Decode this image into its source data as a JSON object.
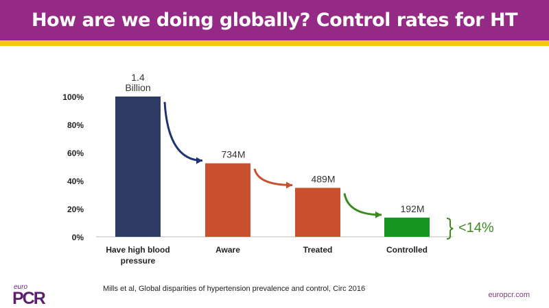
{
  "header": {
    "title": "How are we doing globally? Control rates for HT"
  },
  "footer": {
    "citation": "Mills et al, Global disparities of hypertension prevalence and control, Circ 2016",
    "site": "europcr.com",
    "logo_text": "euro PCR"
  },
  "chart_data": {
    "type": "bar",
    "categories": [
      "Have high blood pressure",
      "Aware",
      "Treated",
      "Controlled"
    ],
    "values": [
      100,
      52.4,
      34.9,
      13.7
    ],
    "data_labels": [
      "1.4 Billion",
      "734M",
      "489M",
      "192M"
    ],
    "ylim": [
      0,
      100
    ],
    "yticks": [
      "0%",
      "20%",
      "40%",
      "60%",
      "80%",
      "100%"
    ],
    "colors": [
      "#2d3a63",
      "#c8502e",
      "#c8502e",
      "#17961f"
    ],
    "arrow_colors": [
      "#1e3370",
      "#c8502e",
      "#3a8a1e"
    ],
    "annotation": "<14%",
    "annotation_color": "#3a8a1e"
  }
}
